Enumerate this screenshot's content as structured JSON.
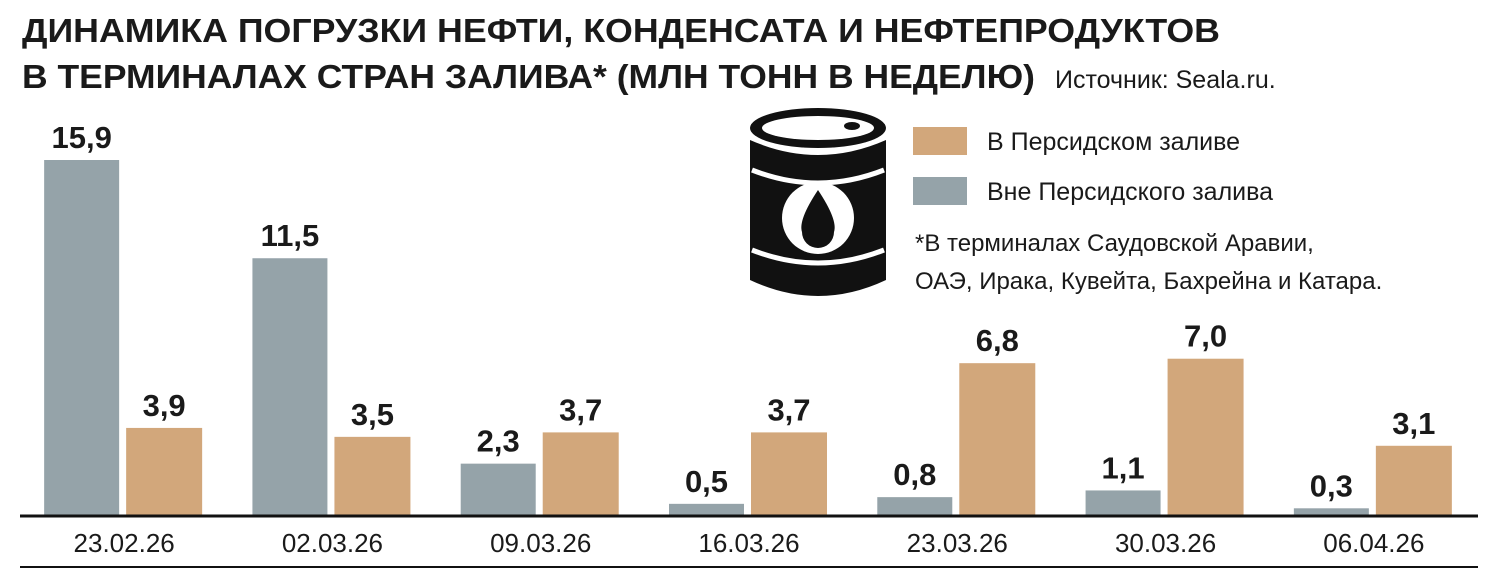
{
  "chart_data": {
    "type": "bar",
    "title": [
      "ДИНАМИКА ПОГРУЗКИ НЕФТИ, КОНДЕНСАТА И НЕФТЕПРОДУКТОВ",
      "В ТЕРМИНАЛАХ СТРАН ЗАЛИВА* (МЛН ТОНН В НЕДЕЛЮ)"
    ],
    "source": "Источник: Seala.ru.",
    "note": [
      "*В терминалах Саудовской Аравии,",
      "ОАЭ, Ирака, Кувейта, Бахрейна и Катара."
    ],
    "categories": [
      "23.02.26",
      "02.03.26",
      "09.03.26",
      "16.03.26",
      "23.03.26",
      "30.03.26",
      "06.04.26"
    ],
    "series": [
      {
        "name": "В Персидском заливе",
        "color": "#d2a77b",
        "values": [
          3.9,
          3.5,
          3.7,
          3.7,
          6.8,
          7.0,
          3.1
        ],
        "value_labels": [
          "3,9",
          "3,5",
          "3,7",
          "3,7",
          "6,8",
          "7,0",
          "3,1"
        ]
      },
      {
        "name": "Вне Персидского залива",
        "color": "#95a3a9",
        "values": [
          15.9,
          11.5,
          2.3,
          0.5,
          0.8,
          1.1,
          0.3
        ],
        "value_labels": [
          "15,9",
          "11,5",
          "2,3",
          "0,5",
          "0,8",
          "1,1",
          "0,3"
        ]
      }
    ]
  }
}
